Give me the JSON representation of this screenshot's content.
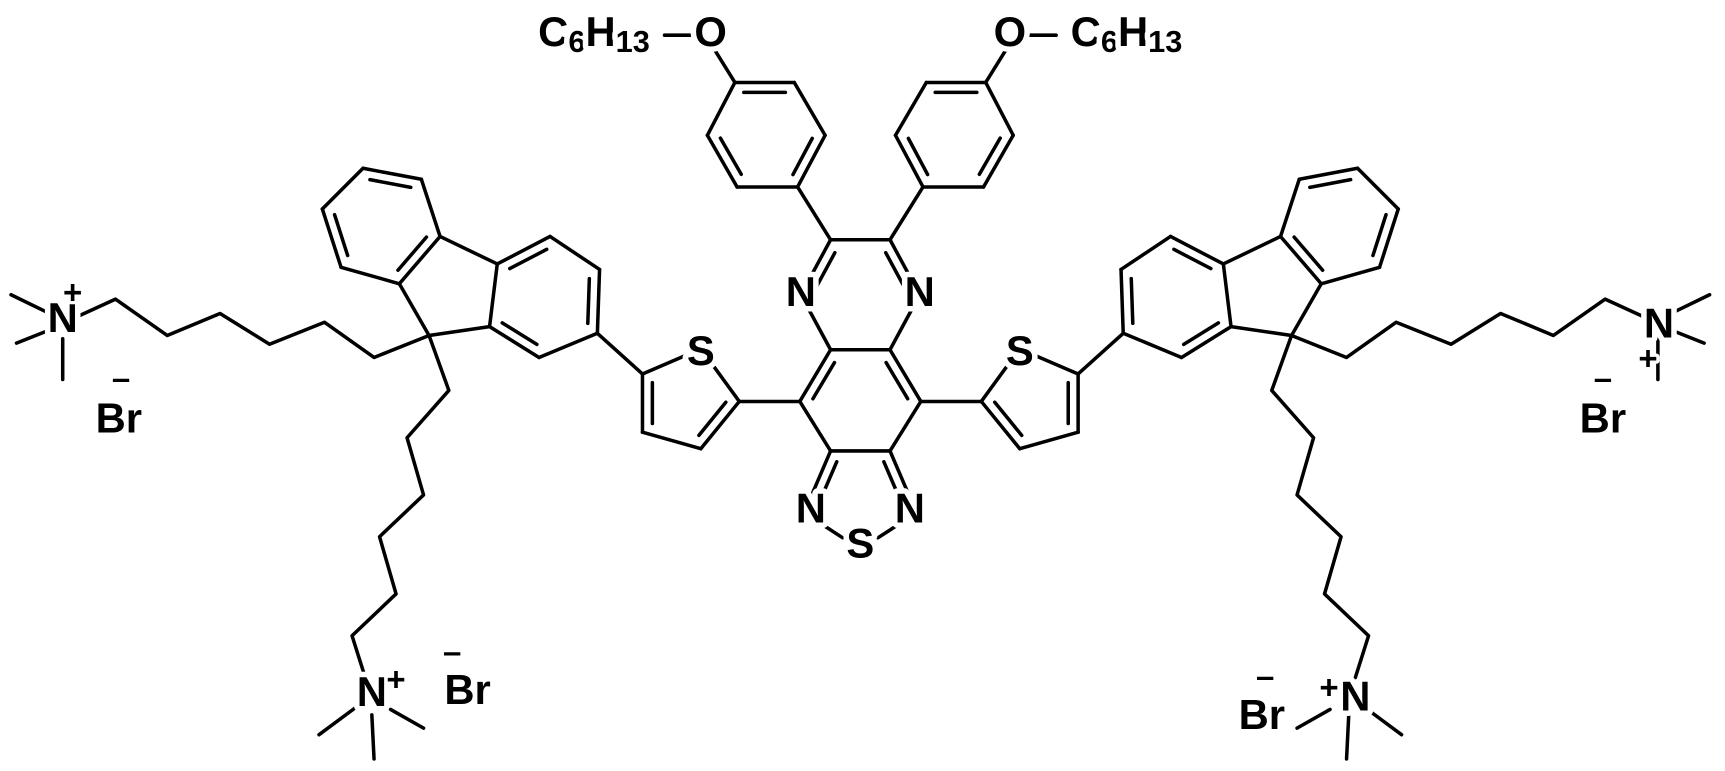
{
  "substituents": {
    "left": {
      "alkyl": "C6H13",
      "oxygen": "O"
    },
    "right": {
      "alkyl": "C6H13",
      "oxygen": "O"
    }
  },
  "core": {
    "quinoxaline_n": [
      "N",
      "N"
    ],
    "thiadiazole": {
      "n": [
        "N",
        "N"
      ],
      "s": "S"
    }
  },
  "thiophene_s": [
    "S",
    "S"
  ],
  "ammonium": [
    {
      "atom": "N",
      "charge": "+",
      "counter_ion": "Br",
      "counter_charge": "–"
    },
    {
      "atom": "N",
      "charge": "+",
      "counter_ion": "Br",
      "counter_charge": "–"
    },
    {
      "atom": "N",
      "charge": "+",
      "counter_ion": "Br",
      "counter_charge": "–"
    },
    {
      "atom": "N",
      "charge": "+",
      "counter_ion": "Br",
      "counter_charge": "–"
    }
  ]
}
